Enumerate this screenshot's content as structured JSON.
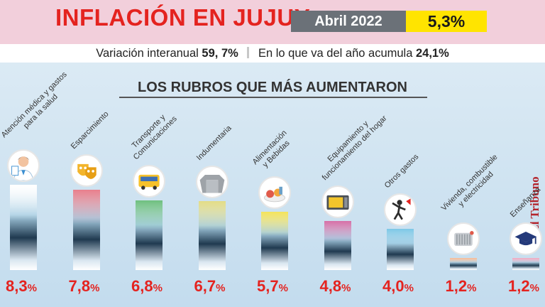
{
  "header": {
    "title": "INFLACIÓN EN JUJUY",
    "period": "Abril 2022",
    "rate": "5,3%"
  },
  "subheader": {
    "interannual_label": "Variación interanual",
    "interannual_value": "59, 7%",
    "ytd_label": "En lo que va del año acumula",
    "ytd_value": "24,1%"
  },
  "brand": "El Tribuno",
  "chart_data": {
    "type": "bar",
    "title": "LOS RUBROS QUE MÁS AUMENTARON",
    "categories": [
      "Atención médica y gastos para la salud",
      "Esparcimiento",
      "Transporte y Comunicaciones",
      "Indumentaria",
      "Alimentación y Bebidas",
      "Equipamiento y funcionamiento del hogar",
      "Otros gastos",
      "Vivienda, combustible y electricidad",
      "Enseñanza"
    ],
    "values": [
      8.3,
      7.8,
      6.8,
      6.7,
      5.7,
      4.8,
      4.0,
      1.2,
      1.2
    ],
    "value_labels": [
      "8,3",
      "7,8",
      "6,8",
      "6,7",
      "5,7",
      "4,8",
      "4,0",
      "1,2",
      "1,2"
    ],
    "unit": "%",
    "label_lines": [
      [
        "Atención médica y gastos",
        "para la salud"
      ],
      [
        "Esparcimiento"
      ],
      [
        "Transporte y",
        "Comunicaciones"
      ],
      [
        "Indumentaria"
      ],
      [
        "Alimentación",
        "y Bebidas"
      ],
      [
        "Equipamiento y",
        "funcionamiento del hogar"
      ],
      [
        "Otros gastos"
      ],
      [
        "Vivienda, combustible",
        "y electricidad"
      ],
      [
        "Enseñanza"
      ]
    ],
    "icons": [
      "doctor-icon",
      "theater-masks-icon",
      "bus-icon",
      "sweater-icon",
      "food-icon",
      "microwave-icon",
      "exercise-icon",
      "heater-icon",
      "graduation-cap-icon"
    ],
    "colors": [
      "#ffffff",
      "#e87f8c",
      "#6fc07f",
      "#e3dc86",
      "#f4e35a",
      "#d66fa7",
      "#7cc7e6",
      "#f6ba95",
      "#f0a8c0"
    ]
  }
}
